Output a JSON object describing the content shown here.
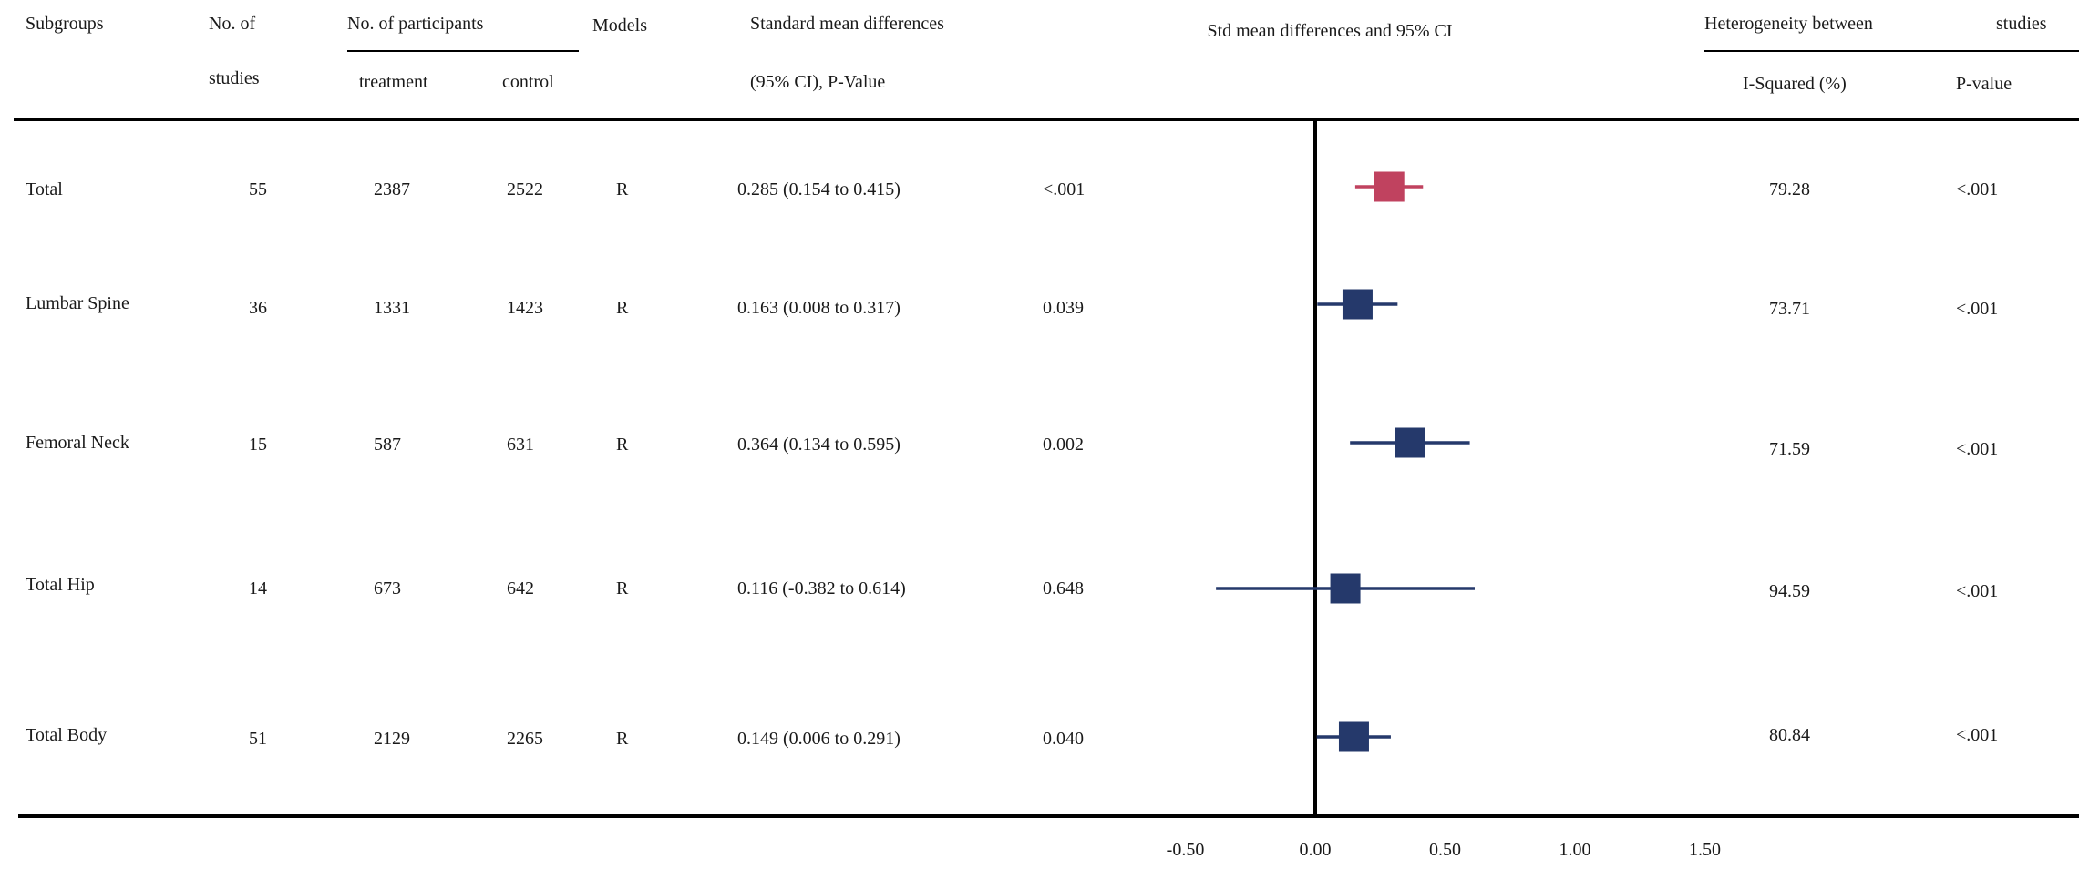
{
  "headers": {
    "subgroups": "Subgroups",
    "n_studies_1": "No. of",
    "n_studies_2": "studies",
    "participants": "No. of participants",
    "treatment": "treatment",
    "control": "control",
    "models": "Models",
    "smd_1": "Standard mean differences",
    "smd_2": "(95% CI), P-Value",
    "plot_title": "Std mean differences and 95% CI",
    "het_1": "Heterogeneity between",
    "het_2": "studies",
    "i2": "I-Squared (%)",
    "pval": "P-value"
  },
  "rows": [
    {
      "subgroup": "Total",
      "studies": "55",
      "treatment": "2387",
      "control": "2522",
      "model": "R",
      "smd_ci": "0.285 (0.154 to 0.415)",
      "p": "<.001",
      "i2": "79.28",
      "het_p": "<.001"
    },
    {
      "subgroup": "Lumbar Spine",
      "studies": "36",
      "treatment": "1331",
      "control": "1423",
      "model": "R",
      "smd_ci": "0.163 (0.008 to 0.317)",
      "p": "0.039",
      "i2": "73.71",
      "het_p": "<.001"
    },
    {
      "subgroup": "Femoral Neck",
      "studies": "15",
      "treatment": "587",
      "control": "631",
      "model": "R",
      "smd_ci": "0.364 (0.134 to 0.595)",
      "p": "0.002",
      "i2": "71.59",
      "het_p": "<.001"
    },
    {
      "subgroup": "Total Hip",
      "studies": "14",
      "treatment": "673",
      "control": "642",
      "model": "R",
      "smd_ci": "0.116 (-0.382 to 0.614)",
      "p": "0.648",
      "i2": "94.59",
      "het_p": "<.001"
    },
    {
      "subgroup": "Total Body",
      "studies": "51",
      "treatment": "2129",
      "control": "2265",
      "model": "R",
      "smd_ci": "0.149 (0.006 to 0.291)",
      "p": "0.040",
      "i2": "80.84",
      "het_p": "<.001"
    }
  ],
  "chart_data": {
    "type": "scatter",
    "title": "Std mean differences and 95% CI",
    "xlim": [
      -0.5,
      1.5
    ],
    "xticks": [
      -0.5,
      0,
      0.5,
      1.0,
      1.5
    ],
    "xtick_labels": [
      "-0.50",
      "0.00",
      "0.50",
      "1.00",
      "1.50"
    ],
    "reference_line": 0,
    "points": [
      {
        "label": "Total",
        "est": 0.285,
        "lo": 0.154,
        "hi": 0.415,
        "color": "#c0425f"
      },
      {
        "label": "Lumbar Spine",
        "est": 0.163,
        "lo": 0.008,
        "hi": 0.317,
        "color": "#25396b"
      },
      {
        "label": "Femoral Neck",
        "est": 0.364,
        "lo": 0.134,
        "hi": 0.595,
        "color": "#25396b"
      },
      {
        "label": "Total Hip",
        "est": 0.116,
        "lo": -0.382,
        "hi": 0.614,
        "color": "#25396b"
      },
      {
        "label": "Total Body",
        "est": 0.149,
        "lo": 0.006,
        "hi": 0.291,
        "color": "#25396b"
      }
    ]
  }
}
